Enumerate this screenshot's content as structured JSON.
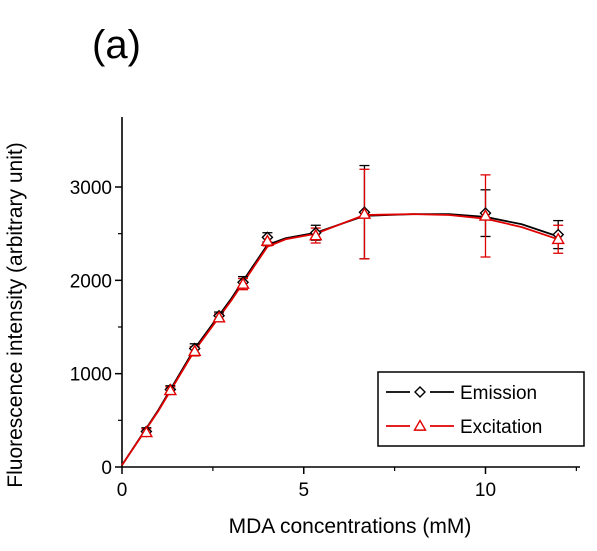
{
  "panel_label": "(a)",
  "chart_data": {
    "type": "line",
    "xlabel": "MDA concentrations (mM)",
    "ylabel": "Fluorescence intensity (arbitrary unit)",
    "xlim": [
      0,
      12.6
    ],
    "ylim": [
      0,
      3750
    ],
    "x_ticks": [
      0,
      5,
      10
    ],
    "y_ticks": [
      0,
      1000,
      2000,
      3000
    ],
    "x_tick_labels": [
      "0",
      "5",
      "10"
    ],
    "y_tick_labels": [
      "0",
      "1000",
      "2000",
      "3000"
    ],
    "grid": false,
    "legend_position": "bottom-right",
    "series": [
      {
        "name": "Emission",
        "color": "#000000",
        "marker": "diamond",
        "points": [
          {
            "x": 0,
            "y": 20,
            "err": 0
          },
          {
            "x": 0.67,
            "y": 380,
            "err": 40
          },
          {
            "x": 1.33,
            "y": 830,
            "err": 40
          },
          {
            "x": 2.0,
            "y": 1270,
            "err": 50
          },
          {
            "x": 2.67,
            "y": 1620,
            "err": 40
          },
          {
            "x": 3.33,
            "y": 1980,
            "err": 60
          },
          {
            "x": 4.0,
            "y": 2460,
            "err": 50
          },
          {
            "x": 5.33,
            "y": 2510,
            "err": 80
          },
          {
            "x": 6.67,
            "y": 2730,
            "err": 500
          },
          {
            "x": 10.0,
            "y": 2720,
            "err": 250
          },
          {
            "x": 12.0,
            "y": 2490,
            "err": 150
          }
        ],
        "curve": [
          [
            0,
            20
          ],
          [
            1,
            610
          ],
          [
            2,
            1270
          ],
          [
            3,
            1800
          ],
          [
            3.6,
            2150
          ],
          [
            4,
            2380
          ],
          [
            4.5,
            2450
          ],
          [
            5.33,
            2510
          ],
          [
            6,
            2600
          ],
          [
            6.67,
            2690
          ],
          [
            8,
            2710
          ],
          [
            9,
            2710
          ],
          [
            10,
            2680
          ],
          [
            11,
            2600
          ],
          [
            12,
            2470
          ]
        ]
      },
      {
        "name": "Excitation",
        "color": "#e00000",
        "marker": "triangle",
        "points": [
          {
            "x": 0,
            "y": 20,
            "err": 0
          },
          {
            "x": 0.67,
            "y": 370,
            "err": 40
          },
          {
            "x": 1.33,
            "y": 820,
            "err": 40
          },
          {
            "x": 2.0,
            "y": 1240,
            "err": 50
          },
          {
            "x": 2.67,
            "y": 1600,
            "err": 40
          },
          {
            "x": 3.33,
            "y": 1960,
            "err": 60
          },
          {
            "x": 4.0,
            "y": 2420,
            "err": 50
          },
          {
            "x": 5.33,
            "y": 2480,
            "err": 80
          },
          {
            "x": 6.67,
            "y": 2710,
            "err": 480
          },
          {
            "x": 10.0,
            "y": 2690,
            "err": 440
          },
          {
            "x": 12.0,
            "y": 2440,
            "err": 150
          }
        ],
        "curve": [
          [
            0,
            20
          ],
          [
            1,
            600
          ],
          [
            2,
            1250
          ],
          [
            3,
            1780
          ],
          [
            3.6,
            2130
          ],
          [
            4,
            2360
          ],
          [
            4.5,
            2440
          ],
          [
            5.33,
            2500
          ],
          [
            6,
            2600
          ],
          [
            6.67,
            2700
          ],
          [
            8,
            2710
          ],
          [
            9,
            2700
          ],
          [
            10,
            2660
          ],
          [
            11,
            2570
          ],
          [
            12,
            2440
          ]
        ]
      }
    ]
  }
}
